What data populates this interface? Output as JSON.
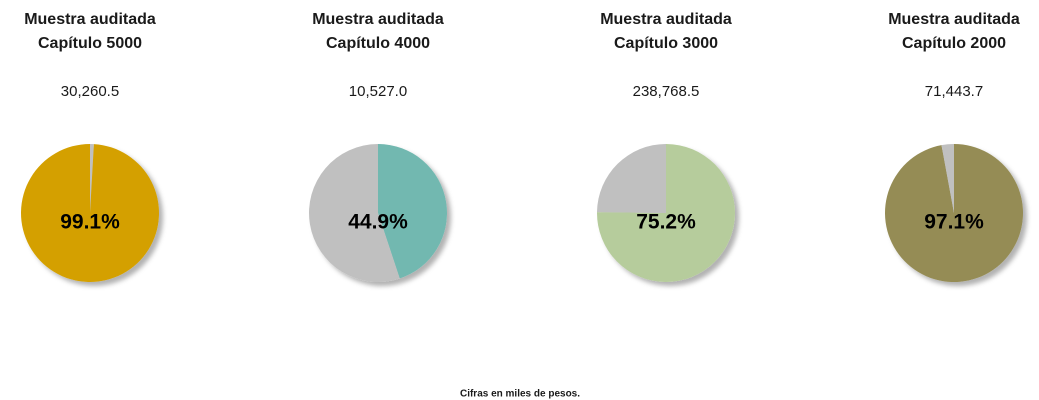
{
  "chart_data": [
    {
      "type": "pie",
      "title": [
        "Muestra auditada",
        "Capítulo 5000"
      ],
      "subtitle": "30,260.5",
      "values": [
        0.9,
        99.1
      ],
      "value_labels": [
        null,
        "99.1%"
      ],
      "colors": [
        "#c0c0c0",
        "#d4a000"
      ]
    },
    {
      "type": "pie",
      "title": [
        "Muestra auditada",
        "Capítulo 4000"
      ],
      "subtitle": "10,527.0",
      "values": [
        44.9,
        55.1
      ],
      "value_labels": [
        "44.9%",
        null
      ],
      "colors": [
        "#72b8b0",
        "#c0c0c0"
      ]
    },
    {
      "type": "pie",
      "title": [
        "Muestra auditada",
        "Capítulo 3000"
      ],
      "subtitle": "238,768.5",
      "values": [
        75.2,
        24.8
      ],
      "value_labels": [
        "75.2%",
        null
      ],
      "colors": [
        "#b6cc9c",
        "#c0c0c0"
      ]
    },
    {
      "type": "pie",
      "title": [
        "Muestra auditada",
        "Capítulo 2000"
      ],
      "subtitle": "71,443.7",
      "values": [
        97.1,
        2.9
      ],
      "value_labels": [
        "97.1%",
        null
      ],
      "colors": [
        "#958c54",
        "#c0c0c0"
      ]
    }
  ],
  "footnote": "Cifras en miles de pesos."
}
